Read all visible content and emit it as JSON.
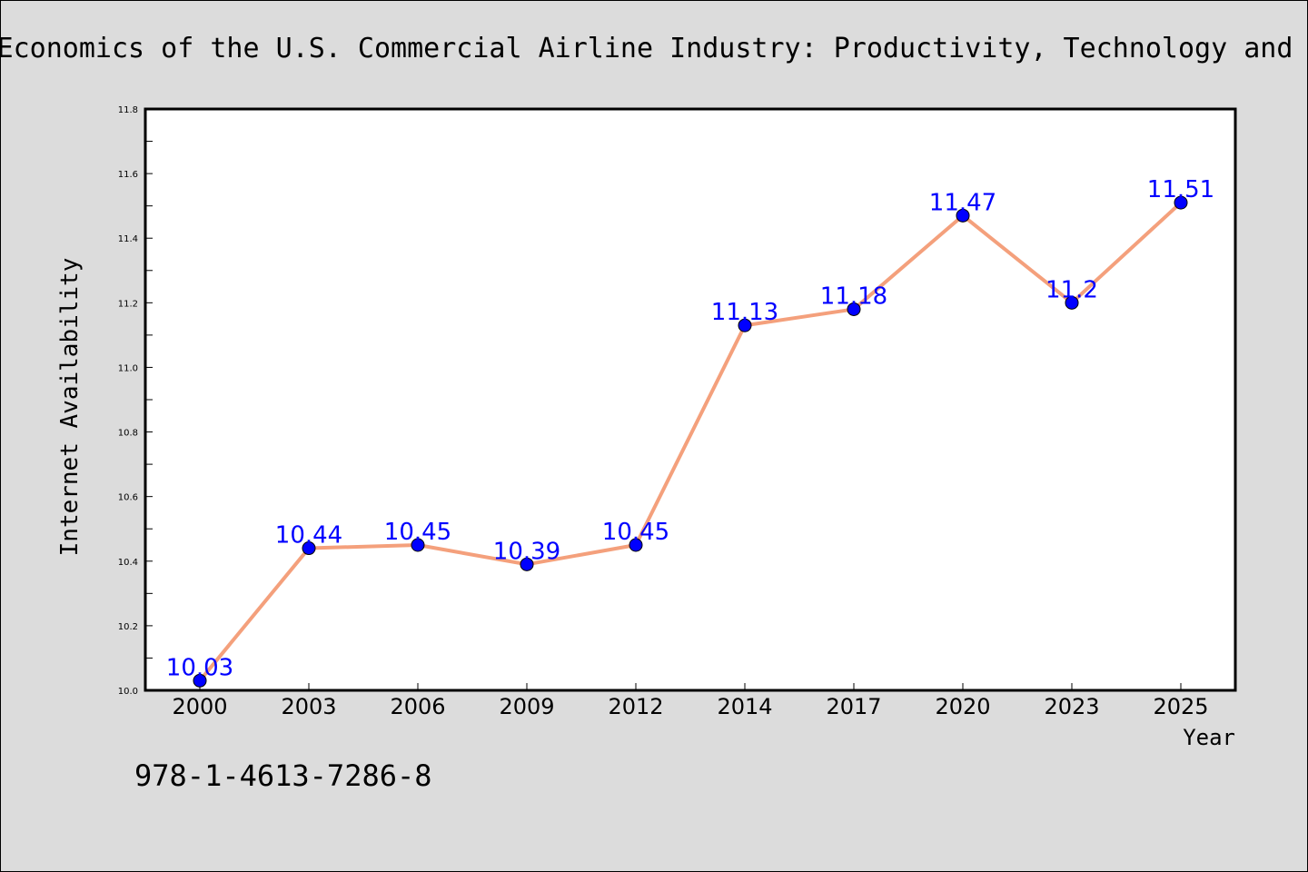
{
  "chart_data": {
    "type": "line",
    "title": "Economics of the U.S. Commercial Airline Industry: Productivity, Technology and",
    "xlabel": "Year",
    "ylabel": "Internet Availability",
    "categories": [
      "2000",
      "2003",
      "2006",
      "2009",
      "2012",
      "2014",
      "2017",
      "2020",
      "2023",
      "2025"
    ],
    "series": [
      {
        "values": [
          10.03,
          10.44,
          10.45,
          10.39,
          10.45,
          11.13,
          11.18,
          11.47,
          11.2,
          11.51
        ],
        "data_labels": [
          "10.03",
          "10.44",
          "10.45",
          "10.39",
          "10.45",
          "11.13",
          "11.18",
          "11.47",
          "11.2",
          "11.51"
        ]
      }
    ],
    "ylim": [
      10.0,
      11.8
    ],
    "y_ticks": [
      "10.0",
      "10.2",
      "10.4",
      "10.6",
      "10.8",
      "11.0",
      "11.2",
      "11.4",
      "11.6",
      "11.8"
    ],
    "grid": false,
    "legend": "none",
    "colors": {
      "line": "#f4a07c",
      "marker": "#0000ff",
      "data_label": "#0000ff",
      "background": "#dcdcdc",
      "plot_area": "#ffffff"
    }
  },
  "annotation": "978-1-4613-7286-8"
}
